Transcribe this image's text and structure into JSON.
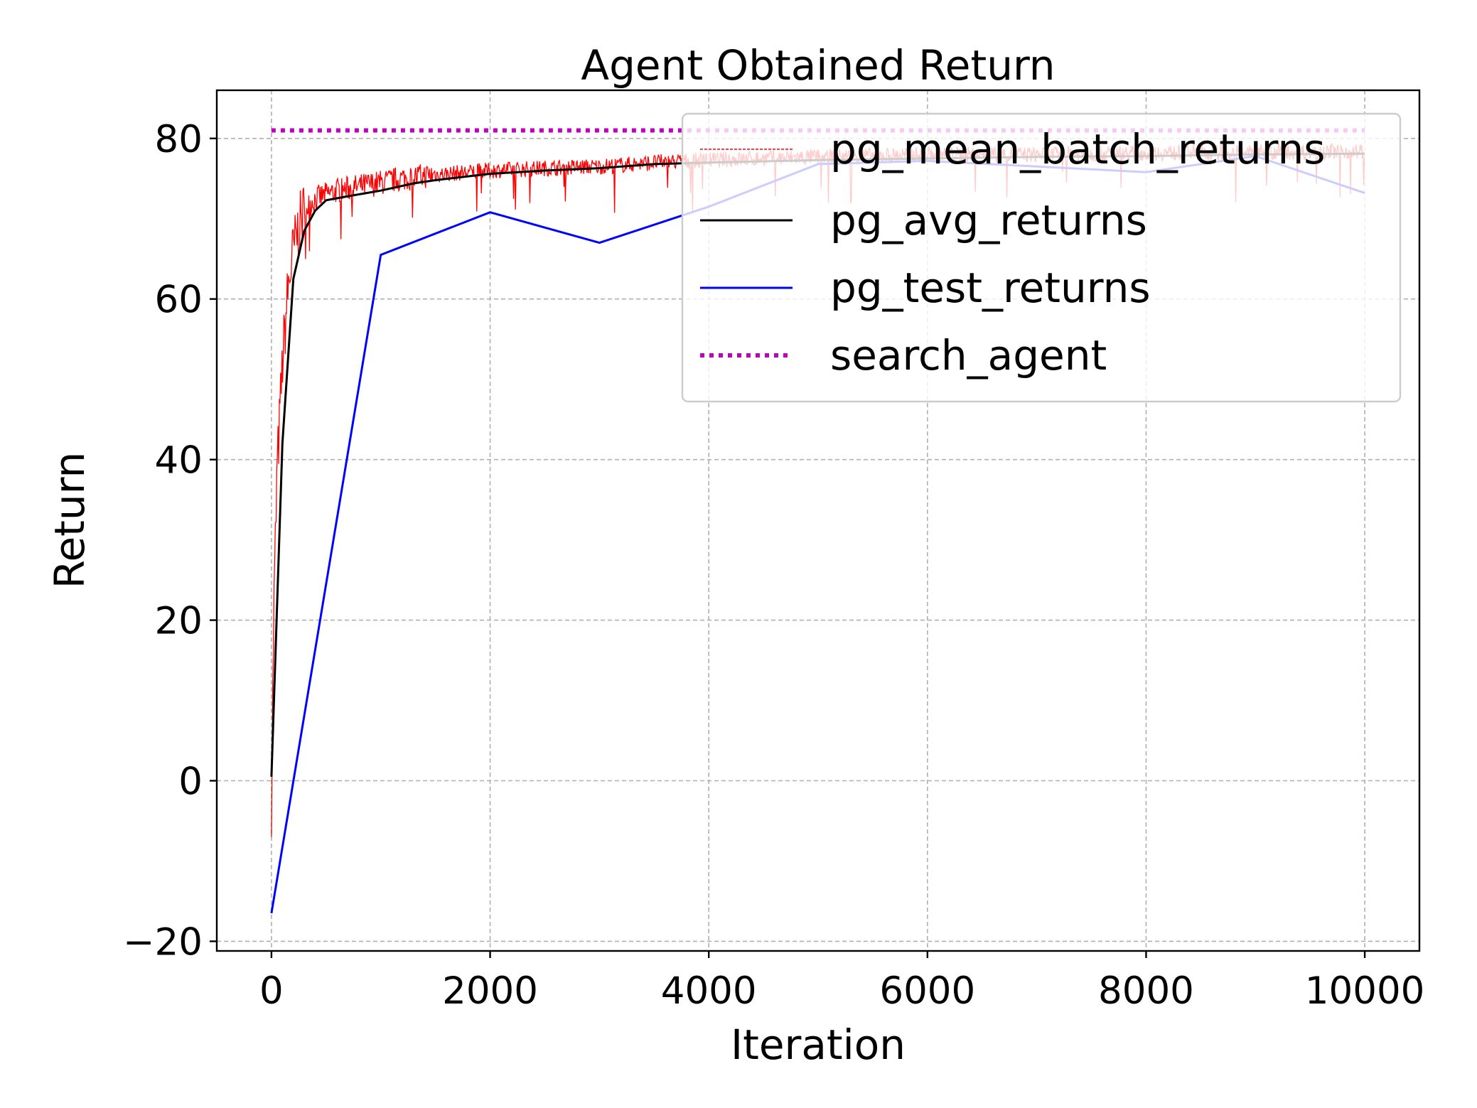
{
  "chart_data": {
    "type": "line",
    "title": "Agent Obtained Return",
    "xlabel": "Iteration",
    "ylabel": "Return",
    "xlim": [
      -500,
      10500
    ],
    "ylim": [
      -21.2,
      86
    ],
    "xticks": [
      0,
      2000,
      4000,
      6000,
      8000,
      10000
    ],
    "xtick_labels": [
      "0",
      "2000",
      "4000",
      "6000",
      "8000",
      "10000"
    ],
    "yticks": [
      -20,
      0,
      20,
      40,
      60,
      80
    ],
    "ytick_labels": [
      "−20",
      "0",
      "20",
      "40",
      "60",
      "80"
    ],
    "grid": true,
    "legend_position": "top-right",
    "series": [
      {
        "name": "pg_mean_batch_returns",
        "color": "#ff0000",
        "style": "solid-noisy",
        "x": [
          0,
          20,
          50,
          100,
          150,
          200,
          250,
          300,
          400,
          500,
          600,
          800,
          1000,
          1200,
          1500,
          2000,
          2500,
          3000,
          3500,
          4000,
          5000,
          6000,
          7000,
          8000,
          9000,
          10000
        ],
        "y": [
          -3,
          20,
          38,
          52,
          61,
          66,
          69,
          71,
          72.5,
          73,
          73.5,
          74,
          74.5,
          75,
          75.5,
          76,
          76.3,
          76.5,
          77,
          77.3,
          77.7,
          78,
          78,
          78.2,
          78.3,
          78.4
        ]
      },
      {
        "name": "pg_avg_returns",
        "color": "#000000",
        "style": "solid",
        "x": [
          0,
          100,
          200,
          300,
          400,
          500,
          700,
          1000,
          1300,
          1500,
          2000,
          2500,
          3000,
          3500,
          4000,
          5000,
          6000,
          7000,
          8000,
          9000,
          10000
        ],
        "y": [
          0.5,
          42,
          62.5,
          68.5,
          71,
          72.3,
          72.8,
          73.5,
          74.4,
          74.8,
          75.6,
          76,
          76.3,
          76.8,
          77,
          77.3,
          77.5,
          77.7,
          77.8,
          78,
          78.1
        ]
      },
      {
        "name": "pg_test_returns",
        "color": "#0000ff",
        "style": "solid",
        "x": [
          0,
          1000,
          2000,
          3000,
          4000,
          5000,
          6000,
          7000,
          8000,
          9000,
          10000
        ],
        "y": [
          -16.5,
          65.5,
          70.8,
          67,
          71.5,
          76.8,
          77.2,
          76.5,
          75.8,
          77.8,
          73.2
        ]
      },
      {
        "name": "search_agent",
        "color": "#bf00bf",
        "style": "dotted",
        "x": [
          0,
          10000
        ],
        "y": [
          81,
          81
        ]
      }
    ]
  }
}
